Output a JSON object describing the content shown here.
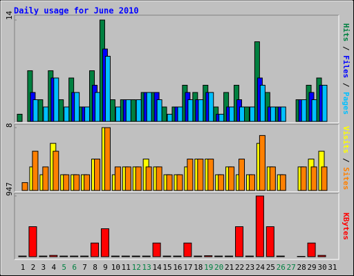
{
  "chart_data": {
    "type": "bar",
    "title": "Daily usage for June 2010",
    "separator": "/",
    "categories": [
      "1",
      "2",
      "3",
      "4",
      "5",
      "6",
      "7",
      "8",
      "9",
      "10",
      "11",
      "12",
      "13",
      "14",
      "15",
      "16",
      "17",
      "18",
      "19",
      "20",
      "21",
      "22",
      "23",
      "24",
      "25",
      "26",
      "27",
      "28",
      "29",
      "30",
      "31"
    ],
    "category_colors": [
      "#000000",
      "#000000",
      "#000000",
      "#000000",
      "#008040",
      "#008040",
      "#000000",
      "#000000",
      "#000000",
      "#000000",
      "#000000",
      "#008040",
      "#008040",
      "#000000",
      "#000000",
      "#000000",
      "#000000",
      "#000000",
      "#008040",
      "#008040",
      "#000000",
      "#000000",
      "#000000",
      "#000000",
      "#000000",
      "#008040",
      "#008040",
      "#000000",
      "#000000",
      "#000000",
      "#000000"
    ],
    "panels": [
      {
        "ylim": [
          0,
          14
        ],
        "yticks": [
          14
        ],
        "series": [
          {
            "name": "Hits",
            "color": "#008040",
            "values": [
              1,
              7,
              3,
              7,
              3,
              6,
              2,
              7,
              14,
              3,
              3,
              3,
              4,
              4,
              2,
              2,
              5,
              4,
              5,
              2,
              4,
              5,
              2,
              11,
              4,
              2,
              0,
              3,
              5,
              6,
              0
            ]
          },
          {
            "name": "Files",
            "color": "#0000ff",
            "values": [
              0,
              4,
              0,
              6,
              0,
              4,
              2,
              5,
              10,
              0,
              3,
              0,
              4,
              4,
              0,
              2,
              4,
              3,
              4,
              1,
              2,
              3,
              0,
              6,
              2,
              2,
              0,
              3,
              4,
              5,
              0
            ]
          },
          {
            "name": "Pages",
            "color": "#00c0ff",
            "values": [
              0,
              3,
              2,
              6,
              2,
              4,
              2,
              4,
              9,
              2,
              3,
              3,
              4,
              3,
              1,
              2,
              3,
              3,
              4,
              1,
              2,
              2,
              2,
              5,
              2,
              2,
              0,
              3,
              3,
              5,
              0
            ]
          }
        ]
      },
      {
        "ylim": [
          0,
          8
        ],
        "yticks": [
          8
        ],
        "series": [
          {
            "name": "Visits",
            "color": "#ffff00",
            "values": [
              0,
              3,
              2,
              6,
              2,
              2,
              2,
              4,
              8,
              2,
              3,
              3,
              4,
              3,
              2,
              2,
              3,
              4,
              4,
              2,
              3,
              2,
              2,
              6,
              3,
              2,
              0,
              3,
              4,
              5,
              0
            ]
          },
          {
            "name": "Sites",
            "color": "#ff8000",
            "values": [
              1,
              5,
              3,
              5,
              2,
              2,
              2,
              4,
              8,
              3,
              3,
              3,
              3,
              3,
              2,
              2,
              4,
              4,
              4,
              2,
              3,
              4,
              2,
              7,
              3,
              2,
              0,
              3,
              3,
              3,
              0
            ]
          }
        ]
      },
      {
        "ylim": [
          0,
          947
        ],
        "yticks": [
          947
        ],
        "series": [
          {
            "name": "KBytes",
            "color": "#ff0000",
            "values": [
              10,
              468,
              10,
              20,
              10,
              10,
              10,
              213,
              436,
              10,
              10,
              10,
              10,
              213,
              10,
              10,
              213,
              10,
              15,
              10,
              10,
              468,
              10,
              947,
              468,
              10,
              0,
              5,
              213,
              20,
              0
            ]
          }
        ]
      }
    ]
  }
}
